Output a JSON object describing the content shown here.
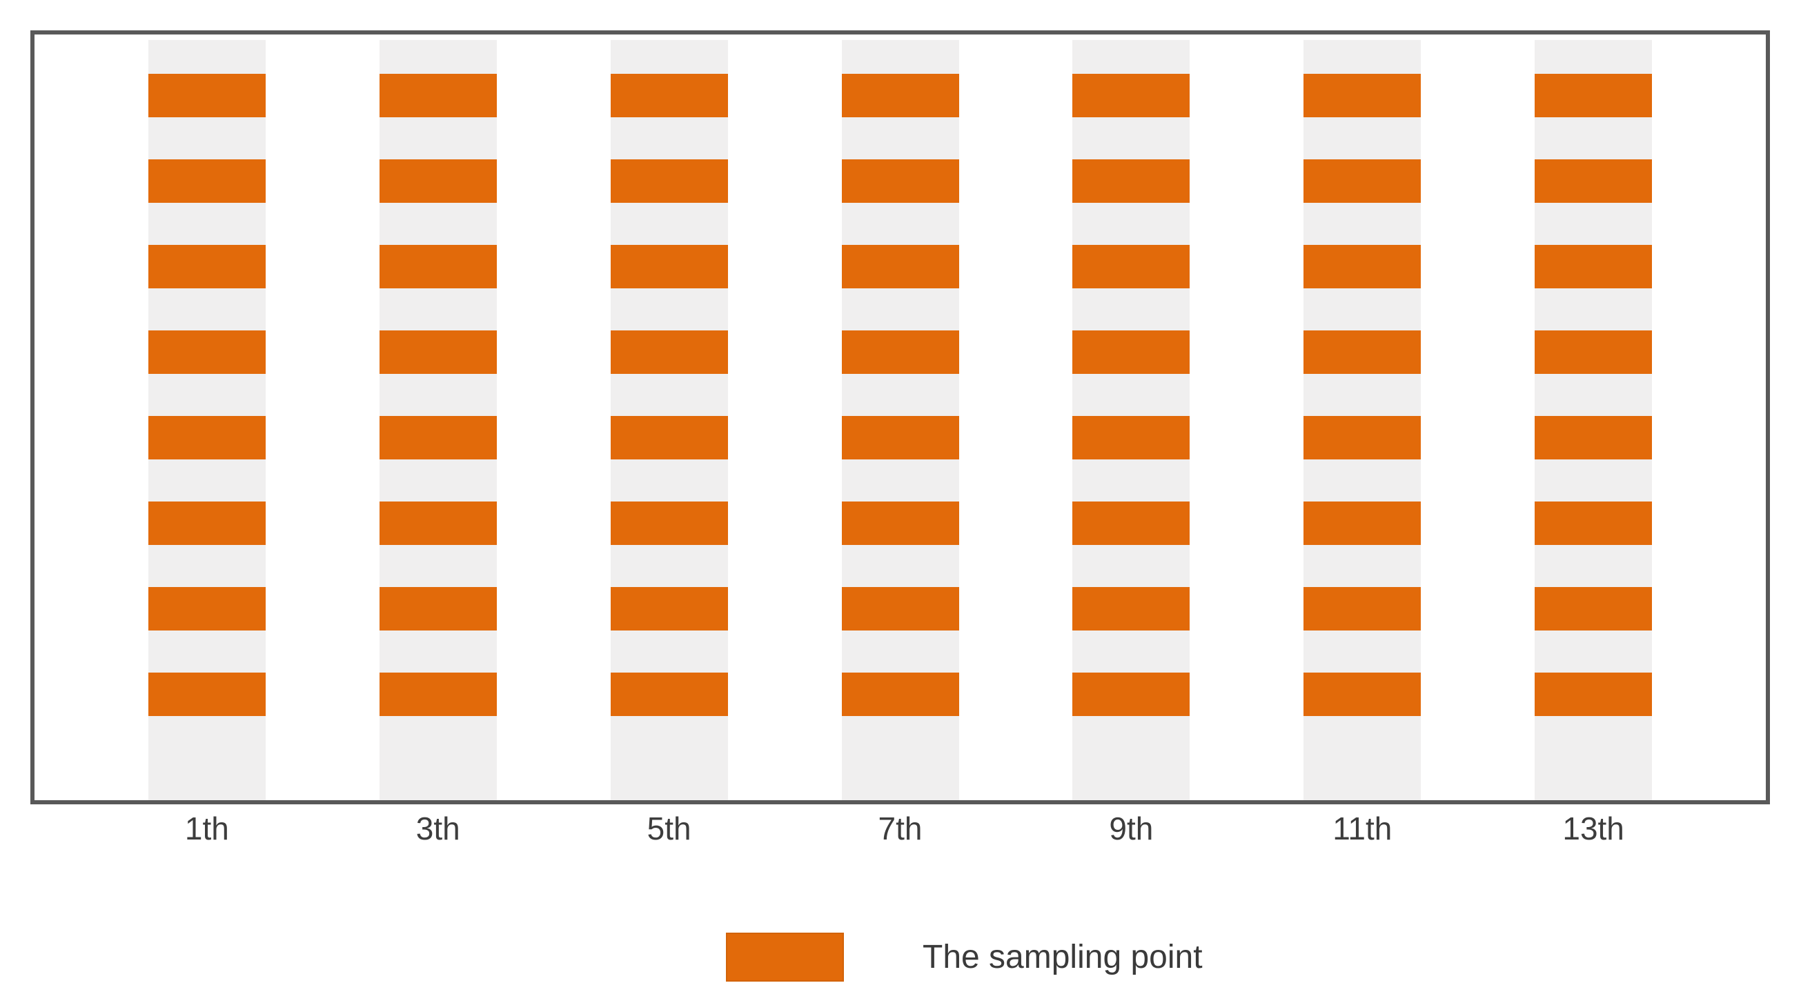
{
  "chart_data": {
    "type": "heatmap",
    "title": "",
    "xlabel": "",
    "ylabel": "",
    "x_categories": [
      "1th",
      "3th",
      "5th",
      "7th",
      "9th",
      "11th",
      "13th"
    ],
    "rows": 8,
    "values": [
      [
        1,
        1,
        1,
        1,
        1,
        1,
        1
      ],
      [
        1,
        1,
        1,
        1,
        1,
        1,
        1
      ],
      [
        1,
        1,
        1,
        1,
        1,
        1,
        1
      ],
      [
        1,
        1,
        1,
        1,
        1,
        1,
        1
      ],
      [
        1,
        1,
        1,
        1,
        1,
        1,
        1
      ],
      [
        1,
        1,
        1,
        1,
        1,
        1,
        1
      ],
      [
        1,
        1,
        1,
        1,
        1,
        1,
        1
      ],
      [
        1,
        1,
        1,
        1,
        1,
        1,
        1
      ]
    ],
    "legend_entries": [
      {
        "label": "The sampling point",
        "color": "#e26a0a"
      }
    ],
    "legend_position": "bottom",
    "grid": false,
    "description": "Sampling layout diagram: 7 vertical strips at odd positions 1th-13th, each strip holding 8 equally spaced orange sampling points on a light gray band inside a framed plot area."
  },
  "colors": {
    "sampling_point": "#e26a0a",
    "strip_background": "#f0efef",
    "frame_border": "#595959",
    "axis_label_text": "#3d3d3d"
  }
}
